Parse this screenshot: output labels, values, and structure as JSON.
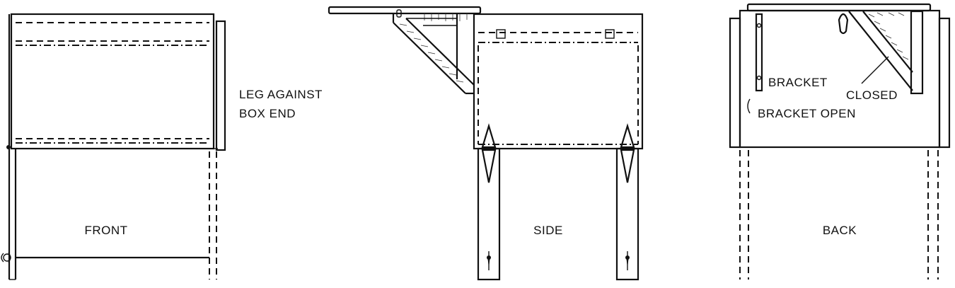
{
  "labels": {
    "front": "FRONT",
    "side": "SIDE",
    "back": "BACK",
    "leg_against_line1": "LEG AGAINST",
    "leg_against_line2": "BOX END",
    "bracket_closed_line1": "BRACKET",
    "bracket_closed_line2": "CLOSED",
    "bracket_open": "BRACKET OPEN"
  },
  "colors": {
    "ink": "#111111",
    "paper": "#ffffff"
  }
}
